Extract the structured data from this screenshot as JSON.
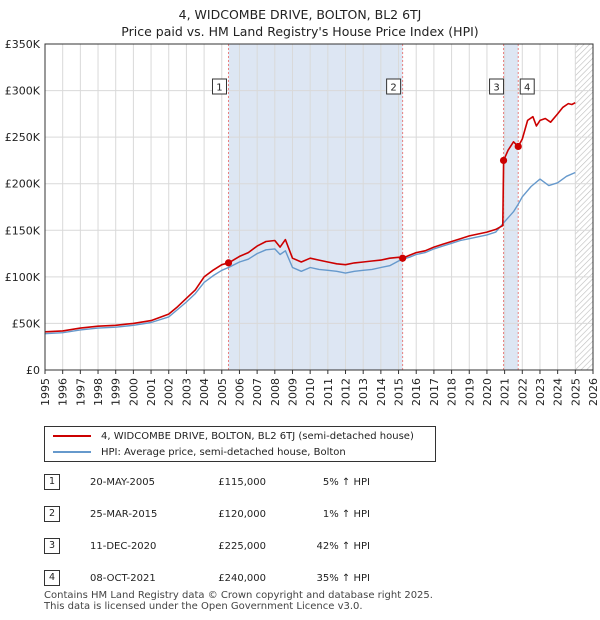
{
  "title_line1": "4, WIDCOMBE DRIVE, BOLTON, BL2 6TJ",
  "title_line2": "Price paid vs. HM Land Registry's House Price Index (HPI)",
  "colors": {
    "property": "#cc0000",
    "hpi": "#6699cc",
    "sale_marker": "#cc0000",
    "shade": "#dde6f3",
    "vline": "#e88080"
  },
  "legend": {
    "property_label": "4, WIDCOMBE DRIVE, BOLTON, BL2 6TJ (semi-detached house)",
    "hpi_label": "HPI: Average price, semi-detached house, Bolton"
  },
  "sales": [
    {
      "num": "1",
      "date": "20-MAY-2005",
      "price": "£115,000",
      "hpi": "5% ↑ HPI"
    },
    {
      "num": "2",
      "date": "25-MAR-2015",
      "price": "£120,000",
      "hpi": "1% ↑ HPI"
    },
    {
      "num": "3",
      "date": "11-DEC-2020",
      "price": "£225,000",
      "hpi": "42% ↑ HPI"
    },
    {
      "num": "4",
      "date": "08-OCT-2021",
      "price": "£240,000",
      "hpi": "35% ↑ HPI"
    }
  ],
  "footer_line1": "Contains HM Land Registry data © Crown copyright and database right 2025.",
  "footer_line2": "This data is licensed under the Open Government Licence v3.0.",
  "chart_data": {
    "type": "line",
    "xlim": [
      1995,
      2026
    ],
    "ylim": [
      0,
      350000
    ],
    "yticks": [
      {
        "value": 0,
        "label": "£0"
      },
      {
        "value": 50000,
        "label": "£50K"
      },
      {
        "value": 100000,
        "label": "£100K"
      },
      {
        "value": 150000,
        "label": "£150K"
      },
      {
        "value": 200000,
        "label": "£200K"
      },
      {
        "value": 250000,
        "label": "£250K"
      },
      {
        "value": 300000,
        "label": "£300K"
      },
      {
        "value": 350000,
        "label": "£350K"
      }
    ],
    "xticks": [
      "1995",
      "1996",
      "1997",
      "1998",
      "1999",
      "2000",
      "2001",
      "2002",
      "2003",
      "2004",
      "2005",
      "2006",
      "2007",
      "2008",
      "2009",
      "2010",
      "2011",
      "2012",
      "2013",
      "2014",
      "2015",
      "2016",
      "2017",
      "2018",
      "2019",
      "2020",
      "2021",
      "2022",
      "2023",
      "2024",
      "2025",
      "2026"
    ],
    "shaded_periods": [
      [
        2005.38,
        2015.23
      ],
      [
        2020.94,
        2021.77
      ]
    ],
    "future_hatch_from": 2025.0,
    "sale_points": [
      {
        "label": "1",
        "x": 2005.38,
        "y": 115000
      },
      {
        "label": "2",
        "x": 2015.23,
        "y": 120000
      },
      {
        "label": "3",
        "x": 2020.94,
        "y": 225000
      },
      {
        "label": "4",
        "x": 2021.77,
        "y": 240000
      }
    ],
    "series": [
      {
        "name": "4, WIDCOMBE DRIVE, BOLTON, BL2 6TJ (semi-detached house)",
        "x": [
          1995.0,
          1996.0,
          1997.0,
          1998.0,
          1999.0,
          2000.0,
          2001.0,
          2002.0,
          2002.5,
          2003.0,
          2003.5,
          2004.0,
          2004.5,
          2005.0,
          2005.38,
          2006.0,
          2006.5,
          2007.0,
          2007.5,
          2008.0,
          2008.3,
          2008.6,
          2009.0,
          2009.5,
          2010.0,
          2010.5,
          2011.0,
          2011.5,
          2012.0,
          2012.5,
          2013.0,
          2013.5,
          2014.0,
          2014.5,
          2015.0,
          2015.23,
          2015.6,
          2016.0,
          2016.5,
          2017.0,
          2017.5,
          2018.0,
          2018.5,
          2019.0,
          2019.5,
          2020.0,
          2020.5,
          2020.9,
          2020.94,
          2021.2,
          2021.5,
          2021.77,
          2022.0,
          2022.3,
          2022.6,
          2022.8,
          2023.0,
          2023.3,
          2023.6,
          2024.0,
          2024.3,
          2024.6,
          2024.8,
          2025.0
        ],
        "y": [
          41000,
          42000,
          45000,
          47000,
          48000,
          50000,
          53000,
          60000,
          68000,
          77000,
          86000,
          100000,
          107000,
          113000,
          115000,
          122000,
          126000,
          133000,
          138000,
          139000,
          132000,
          140000,
          120000,
          116000,
          120000,
          118000,
          116000,
          114000,
          113000,
          115000,
          116000,
          117000,
          118000,
          120000,
          121000,
          120000,
          123000,
          126000,
          128000,
          132000,
          135000,
          138000,
          141000,
          144000,
          146000,
          148000,
          151000,
          155000,
          225000,
          236000,
          245000,
          240000,
          248000,
          268000,
          272000,
          262000,
          268000,
          270000,
          266000,
          275000,
          282000,
          286000,
          285000,
          287000
        ]
      },
      {
        "name": "HPI: Average price, semi-detached house, Bolton",
        "x": [
          1995.0,
          1996.0,
          1997.0,
          1998.0,
          1999.0,
          2000.0,
          2001.0,
          2002.0,
          2002.5,
          2003.0,
          2003.5,
          2004.0,
          2004.5,
          2005.0,
          2005.38,
          2006.0,
          2006.5,
          2007.0,
          2007.5,
          2008.0,
          2008.3,
          2008.6,
          2009.0,
          2009.5,
          2010.0,
          2010.5,
          2011.0,
          2011.5,
          2012.0,
          2012.5,
          2013.0,
          2013.5,
          2014.0,
          2014.5,
          2015.0,
          2015.23,
          2015.6,
          2016.0,
          2016.5,
          2017.0,
          2017.5,
          2018.0,
          2018.5,
          2019.0,
          2019.5,
          2020.0,
          2020.5,
          2020.94,
          2021.5,
          2021.77,
          2022.0,
          2022.5,
          2023.0,
          2023.5,
          2024.0,
          2024.5,
          2025.0
        ],
        "y": [
          39000,
          40000,
          43000,
          45000,
          46000,
          48000,
          51000,
          57000,
          65000,
          73000,
          82000,
          94000,
          101000,
          107000,
          110000,
          116000,
          119000,
          125000,
          129000,
          130000,
          124000,
          128000,
          110000,
          106000,
          110000,
          108000,
          107000,
          106000,
          104000,
          106000,
          107000,
          108000,
          110000,
          112000,
          117000,
          119000,
          121000,
          124000,
          126000,
          130000,
          133000,
          136000,
          139000,
          141000,
          143000,
          145000,
          148000,
          158000,
          170000,
          178000,
          186000,
          197000,
          205000,
          198000,
          201000,
          208000,
          212000
        ]
      }
    ]
  }
}
